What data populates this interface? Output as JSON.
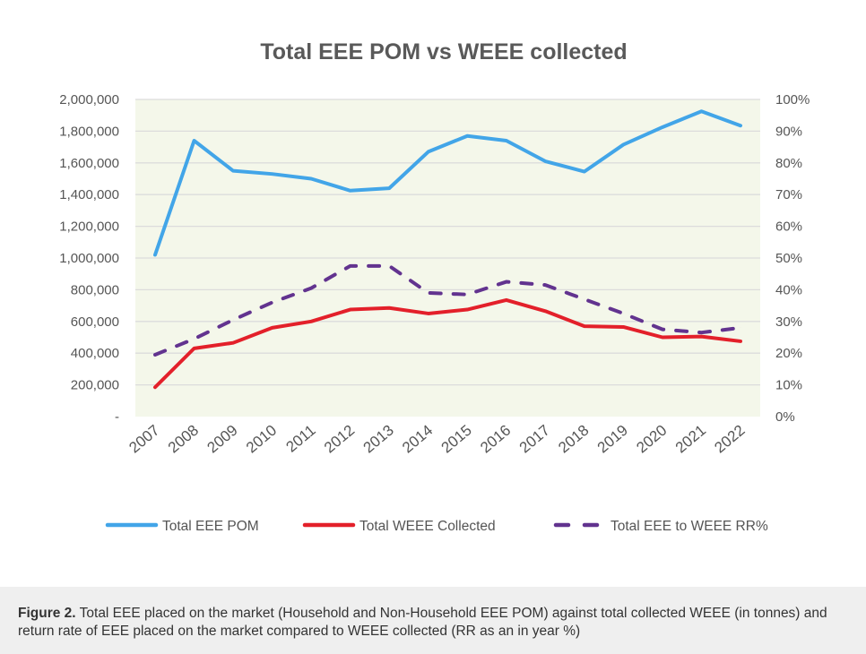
{
  "chart_data": {
    "type": "line",
    "title": "Total EEE POM vs WEEE collected",
    "categories": [
      "2007",
      "2008",
      "2009",
      "2010",
      "2011",
      "2012",
      "2013",
      "2014",
      "2015",
      "2016",
      "2017",
      "2018",
      "2019",
      "2020",
      "2021",
      "2022"
    ],
    "y_left": {
      "range": [
        0,
        2000000
      ],
      "ticks": [
        "-",
        "200,000",
        "400,000",
        "600,000",
        "800,000",
        "1,000,000",
        "1,200,000",
        "1,400,000",
        "1,600,000",
        "1,800,000",
        "2,000,000"
      ]
    },
    "y_right": {
      "range": [
        0,
        100
      ],
      "ticks": [
        "0%",
        "10%",
        "20%",
        "30%",
        "40%",
        "50%",
        "60%",
        "70%",
        "80%",
        "90%",
        "100%"
      ]
    },
    "grid": true,
    "legend_position": "bottom",
    "series": [
      {
        "name": "Total EEE POM",
        "axis": "left",
        "color": "#42a5e8",
        "style": "solid",
        "values": [
          1020000,
          1740000,
          1550000,
          1530000,
          1500000,
          1425000,
          1440000,
          1670000,
          1770000,
          1740000,
          1610000,
          1545000,
          1715000,
          1825000,
          1925000,
          1835000
        ]
      },
      {
        "name": "Total WEEE Collected",
        "axis": "left",
        "color": "#e3202a",
        "style": "solid",
        "values": [
          185000,
          430000,
          465000,
          560000,
          600000,
          675000,
          685000,
          650000,
          675000,
          735000,
          665000,
          570000,
          565000,
          500000,
          505000,
          475000
        ]
      },
      {
        "name": "Total EEE to WEEE RR%",
        "axis": "right",
        "color": "#62338f",
        "style": "dashed",
        "values": [
          19.5,
          24.5,
          30.5,
          36,
          40.5,
          47.5,
          47.5,
          39,
          38.5,
          42.5,
          41.5,
          37,
          32.5,
          27.5,
          26.5,
          28
        ]
      }
    ]
  },
  "caption": {
    "label": "Figure 2.",
    "text": " Total EEE placed on the market (Household and Non-Household EEE POM) against total collected WEEE (in tonnes) and return rate of EEE placed on the market compared to WEEE collected (RR as an in year %)"
  }
}
